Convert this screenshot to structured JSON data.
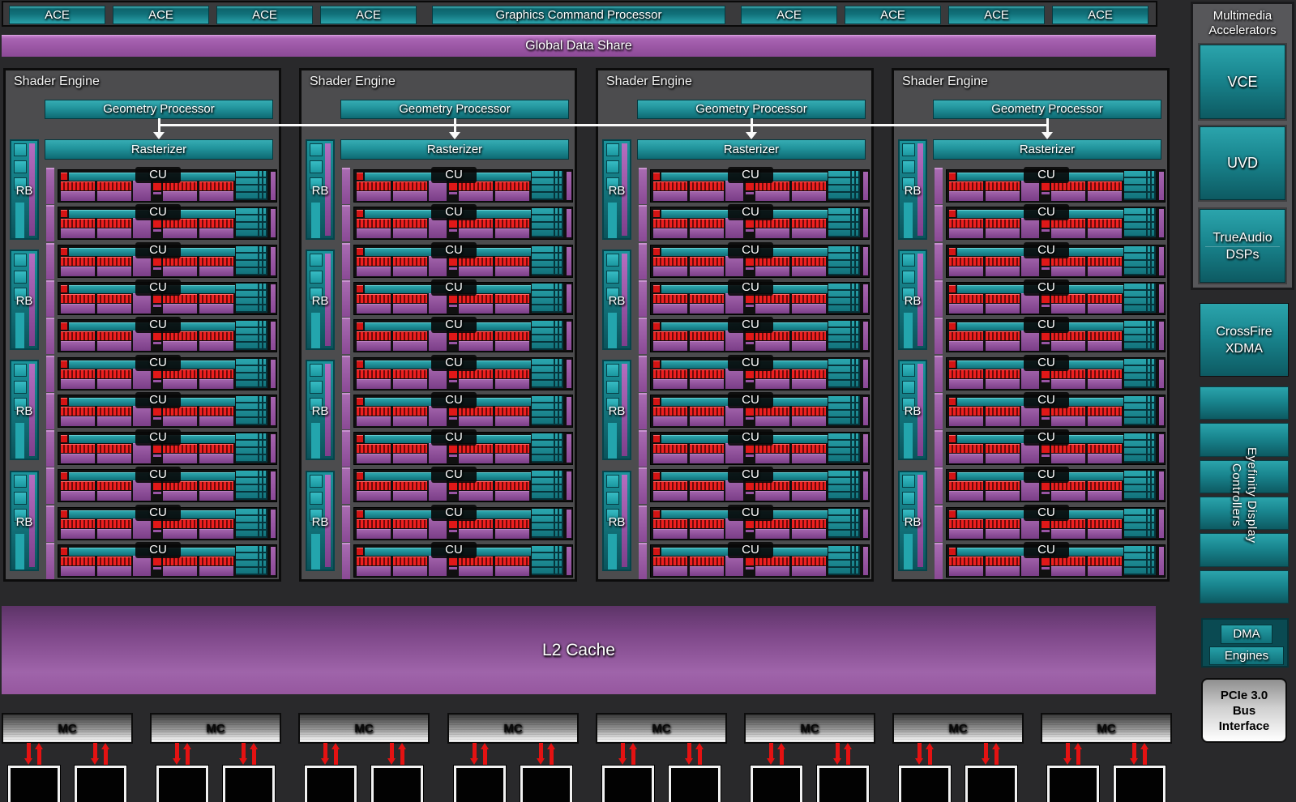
{
  "top": {
    "ace_labels": [
      "ACE",
      "ACE",
      "ACE",
      "ACE",
      "ACE",
      "ACE",
      "ACE",
      "ACE"
    ],
    "gcp_label": "Graphics Command Processor"
  },
  "global_data_share": {
    "label": "Global Data Share"
  },
  "shader_engines": {
    "count": 4,
    "title": "Shader Engine",
    "geometry_label": "Geometry Processor",
    "rasterizer_label": "Rasterizer",
    "rb_label": "RB",
    "rb_per_engine": 4,
    "cu_label": "CU",
    "cu_per_engine": 11
  },
  "l2_cache": {
    "label": "L2 Cache"
  },
  "memory": {
    "mc_label": "MC",
    "mc_count": 8,
    "chips_per_mc": 2
  },
  "sidebar": {
    "multimedia": {
      "title_lines": [
        "Multimedia",
        "Accelerators"
      ],
      "vce_label": "VCE",
      "uvd_label": "UVD",
      "trueaudio_lines": [
        "TrueAudio",
        "DSPs"
      ]
    },
    "crossfire_lines": [
      "CrossFire",
      "XDMA"
    ],
    "eyefinity": {
      "segments": 6,
      "label_lines": [
        "Eyefinity Display",
        "Controllers"
      ]
    },
    "dma_lines": [
      "DMA",
      "Engines"
    ],
    "pcie_lines": [
      "PCIe 3.0",
      "Bus",
      "Interface"
    ]
  },
  "colors": {
    "teal": "#1f99a1",
    "purple": "#9a56a4",
    "red": "#e41212",
    "engine_gray": "#4c4c4e",
    "background": "#29292b",
    "connector_white": "#fafafa"
  }
}
